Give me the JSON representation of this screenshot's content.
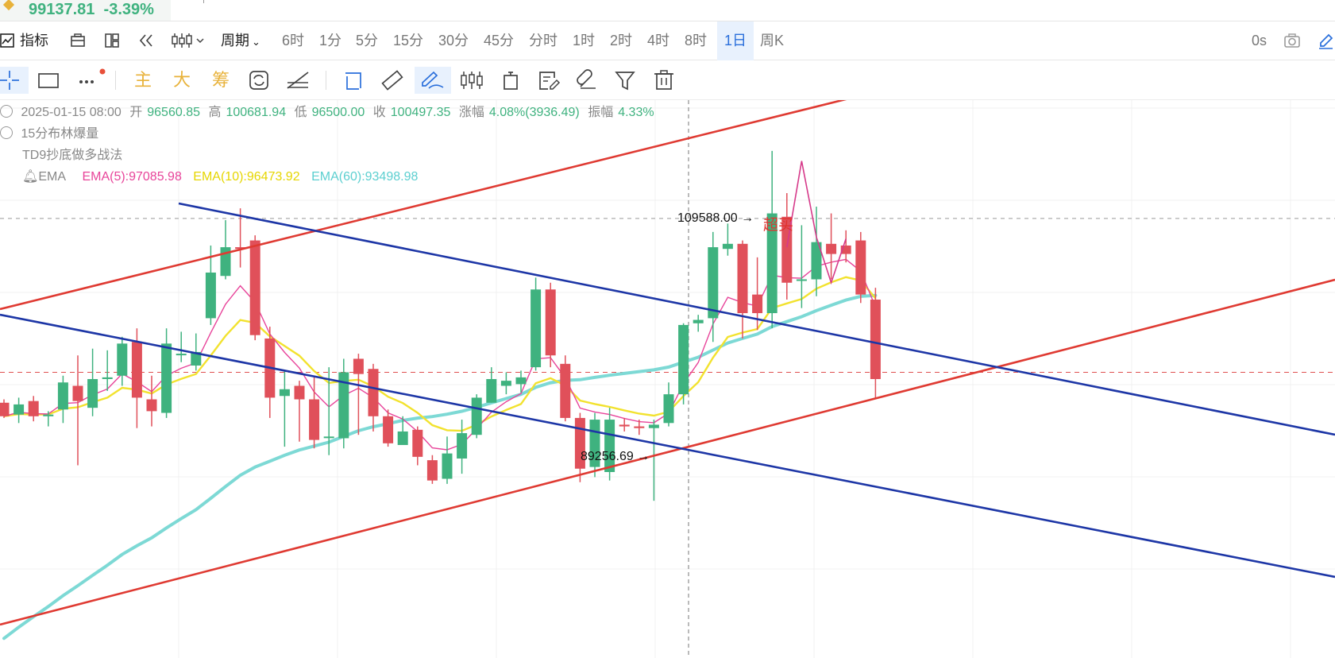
{
  "ticker": {
    "price": "99137.81",
    "change": "-3.39%"
  },
  "toolbar": {
    "indicators_label": "指标",
    "period_label": "周期",
    "intervals": [
      "6时",
      "1分",
      "5分",
      "15分",
      "30分",
      "45分",
      "分时",
      "1时",
      "2时",
      "4时",
      "8时",
      "1日",
      "周K"
    ],
    "active_interval": "1日",
    "countdown": "0s"
  },
  "drawing_toolbar": {
    "indicator_buttons": [
      "主",
      "大",
      "筹"
    ]
  },
  "legend": {
    "date": "2025-01-15 08:00",
    "open_label": "开",
    "open": "96560.85",
    "high_label": "高",
    "high": "100681.94",
    "low_label": "低",
    "low": "96500.00",
    "close_label": "收",
    "close": "100497.35",
    "change_label": "涨幅",
    "change": "4.08%(3936.49)",
    "amplitude_label": "振幅",
    "amplitude": "4.33%",
    "strategy1": "15分布林爆量",
    "strategy2": "TD9抄底做多战法",
    "ema_label": "EMA",
    "ema5": "EMA(5):97085.98",
    "ema10": "EMA(10):96473.92",
    "ema60": "EMA(60):93498.98"
  },
  "annotations": {
    "high_marker": "109588.00 →",
    "overbought": "超买",
    "low_marker": "89256.69 →"
  },
  "colors": {
    "up": "#3fb27f",
    "down": "#e0505a",
    "ema5": "#e8449a",
    "ema10": "#f2e22e",
    "ema60": "#7dd9d5",
    "red_channel": "#df3a32",
    "blue_channel": "#1d36a6",
    "accent": "#2a6fdb"
  },
  "chart_data": {
    "type": "candlestick",
    "y_range": [
      80000,
      113000
    ],
    "dotted_levels": [
      106000
    ],
    "dashed_red_level": 96900,
    "candles": [
      [
        95100,
        94300,
        95300,
        94200
      ],
      [
        94400,
        95000,
        95400,
        93900
      ],
      [
        95200,
        94300,
        95500,
        94000
      ],
      [
        94300,
        94400,
        94600,
        93700
      ],
      [
        94700,
        96300,
        96700,
        93900
      ],
      [
        96100,
        95200,
        97900,
        91400
      ],
      [
        94800,
        96500,
        98300,
        94300
      ],
      [
        96500,
        96600,
        98200,
        95800
      ],
      [
        96700,
        98600,
        99000,
        96100
      ],
      [
        98700,
        95400,
        99500,
        93600
      ],
      [
        95300,
        94600,
        96700,
        93700
      ],
      [
        94500,
        98600,
        99500,
        94200
      ],
      [
        98000,
        98000,
        99300,
        97500
      ],
      [
        97300,
        98100,
        99200,
        97000
      ],
      [
        100100,
        102800,
        104400,
        99700
      ],
      [
        102600,
        104300,
        105900,
        102400
      ],
      [
        104300,
        104200,
        106600,
        103100
      ],
      [
        104700,
        99100,
        105000,
        98800
      ],
      [
        98900,
        95400,
        99600,
        94200
      ],
      [
        95500,
        95900,
        97000,
        92500
      ],
      [
        96100,
        95300,
        96400,
        92800
      ],
      [
        95300,
        92900,
        96600,
        92400
      ],
      [
        93100,
        93100,
        97200,
        92000
      ],
      [
        93000,
        96900,
        97700,
        92400
      ],
      [
        97700,
        96800,
        98000,
        93200
      ],
      [
        97100,
        94300,
        97400,
        93400
      ],
      [
        94300,
        92700,
        94700,
        92500
      ],
      [
        92600,
        93400,
        94300,
        92800
      ],
      [
        93500,
        91900,
        93700,
        91400
      ],
      [
        91700,
        90500,
        92000,
        90300
      ],
      [
        90600,
        92100,
        93100,
        90300
      ],
      [
        91800,
        93300,
        94100,
        90900
      ],
      [
        93200,
        95400,
        95600,
        93000
      ],
      [
        95100,
        96500,
        97200,
        95100
      ],
      [
        96100,
        96400,
        96900,
        95600
      ],
      [
        96200,
        96600,
        97000,
        95700
      ],
      [
        97200,
        101800,
        102500,
        97000
      ],
      [
        101800,
        97900,
        102200,
        97200
      ],
      [
        97400,
        94200,
        97900,
        94000
      ],
      [
        94200,
        91200,
        94500,
        90400
      ],
      [
        91300,
        94100,
        94500,
        90700
      ],
      [
        91000,
        94100,
        94800,
        90500
      ],
      [
        93800,
        93700,
        94200,
        93400
      ],
      [
        93700,
        93600,
        94100,
        93200
      ],
      [
        93600,
        93800,
        94100,
        89300
      ],
      [
        93900,
        95600,
        96300,
        93700
      ],
      [
        95600,
        99700,
        99800,
        95000
      ],
      [
        99800,
        100000,
        100300,
        99300
      ],
      [
        100100,
        104300,
        105200,
        98700
      ],
      [
        104200,
        104500,
        105700,
        103800
      ],
      [
        104500,
        100400,
        104700,
        98900
      ],
      [
        101500,
        100400,
        103700,
        99400
      ],
      [
        100400,
        106300,
        110000,
        99500
      ],
      [
        106100,
        102200,
        107500,
        101200
      ],
      [
        102400,
        102400,
        105600,
        100700
      ],
      [
        102400,
        104600,
        106700,
        101400
      ],
      [
        104500,
        103900,
        106300,
        102400
      ],
      [
        104400,
        103900,
        105300,
        103400
      ],
      [
        104700,
        101500,
        105200,
        101000
      ],
      [
        101200,
        96500,
        101900,
        95300
      ]
    ]
  }
}
